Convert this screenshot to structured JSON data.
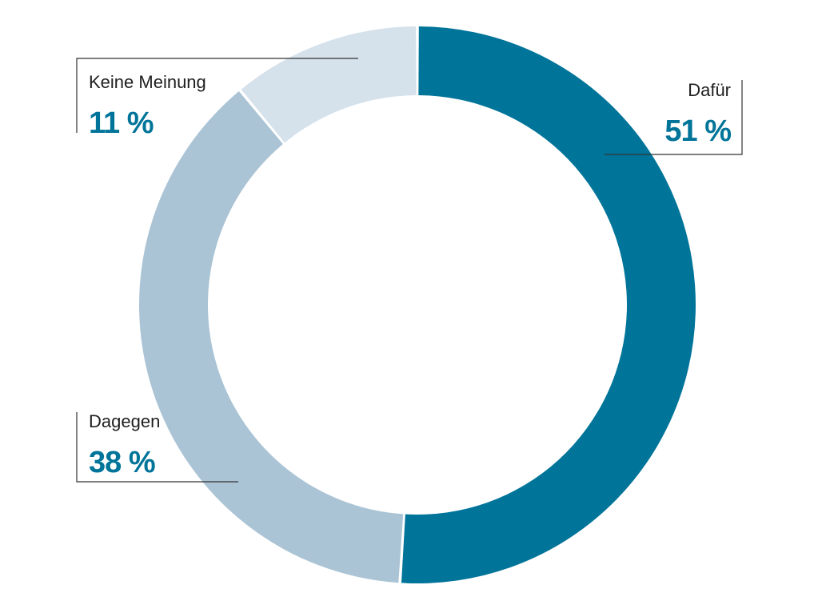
{
  "chart_data": {
    "type": "pie",
    "variant": "donut",
    "title": "",
    "categories": [
      "Dafür",
      "Dagegen",
      "Keine Meinung"
    ],
    "values": [
      51,
      38,
      11
    ],
    "unit": "%",
    "value_labels": [
      "51 %",
      "38 %",
      "11 %"
    ],
    "colors": [
      "#007499",
      "#abc4d5",
      "#d5e1eb"
    ],
    "value_label_color": "#007499",
    "start_angle": "12 o'clock",
    "direction": "clockwise",
    "legend": "none (slice labels with leader lines)"
  }
}
